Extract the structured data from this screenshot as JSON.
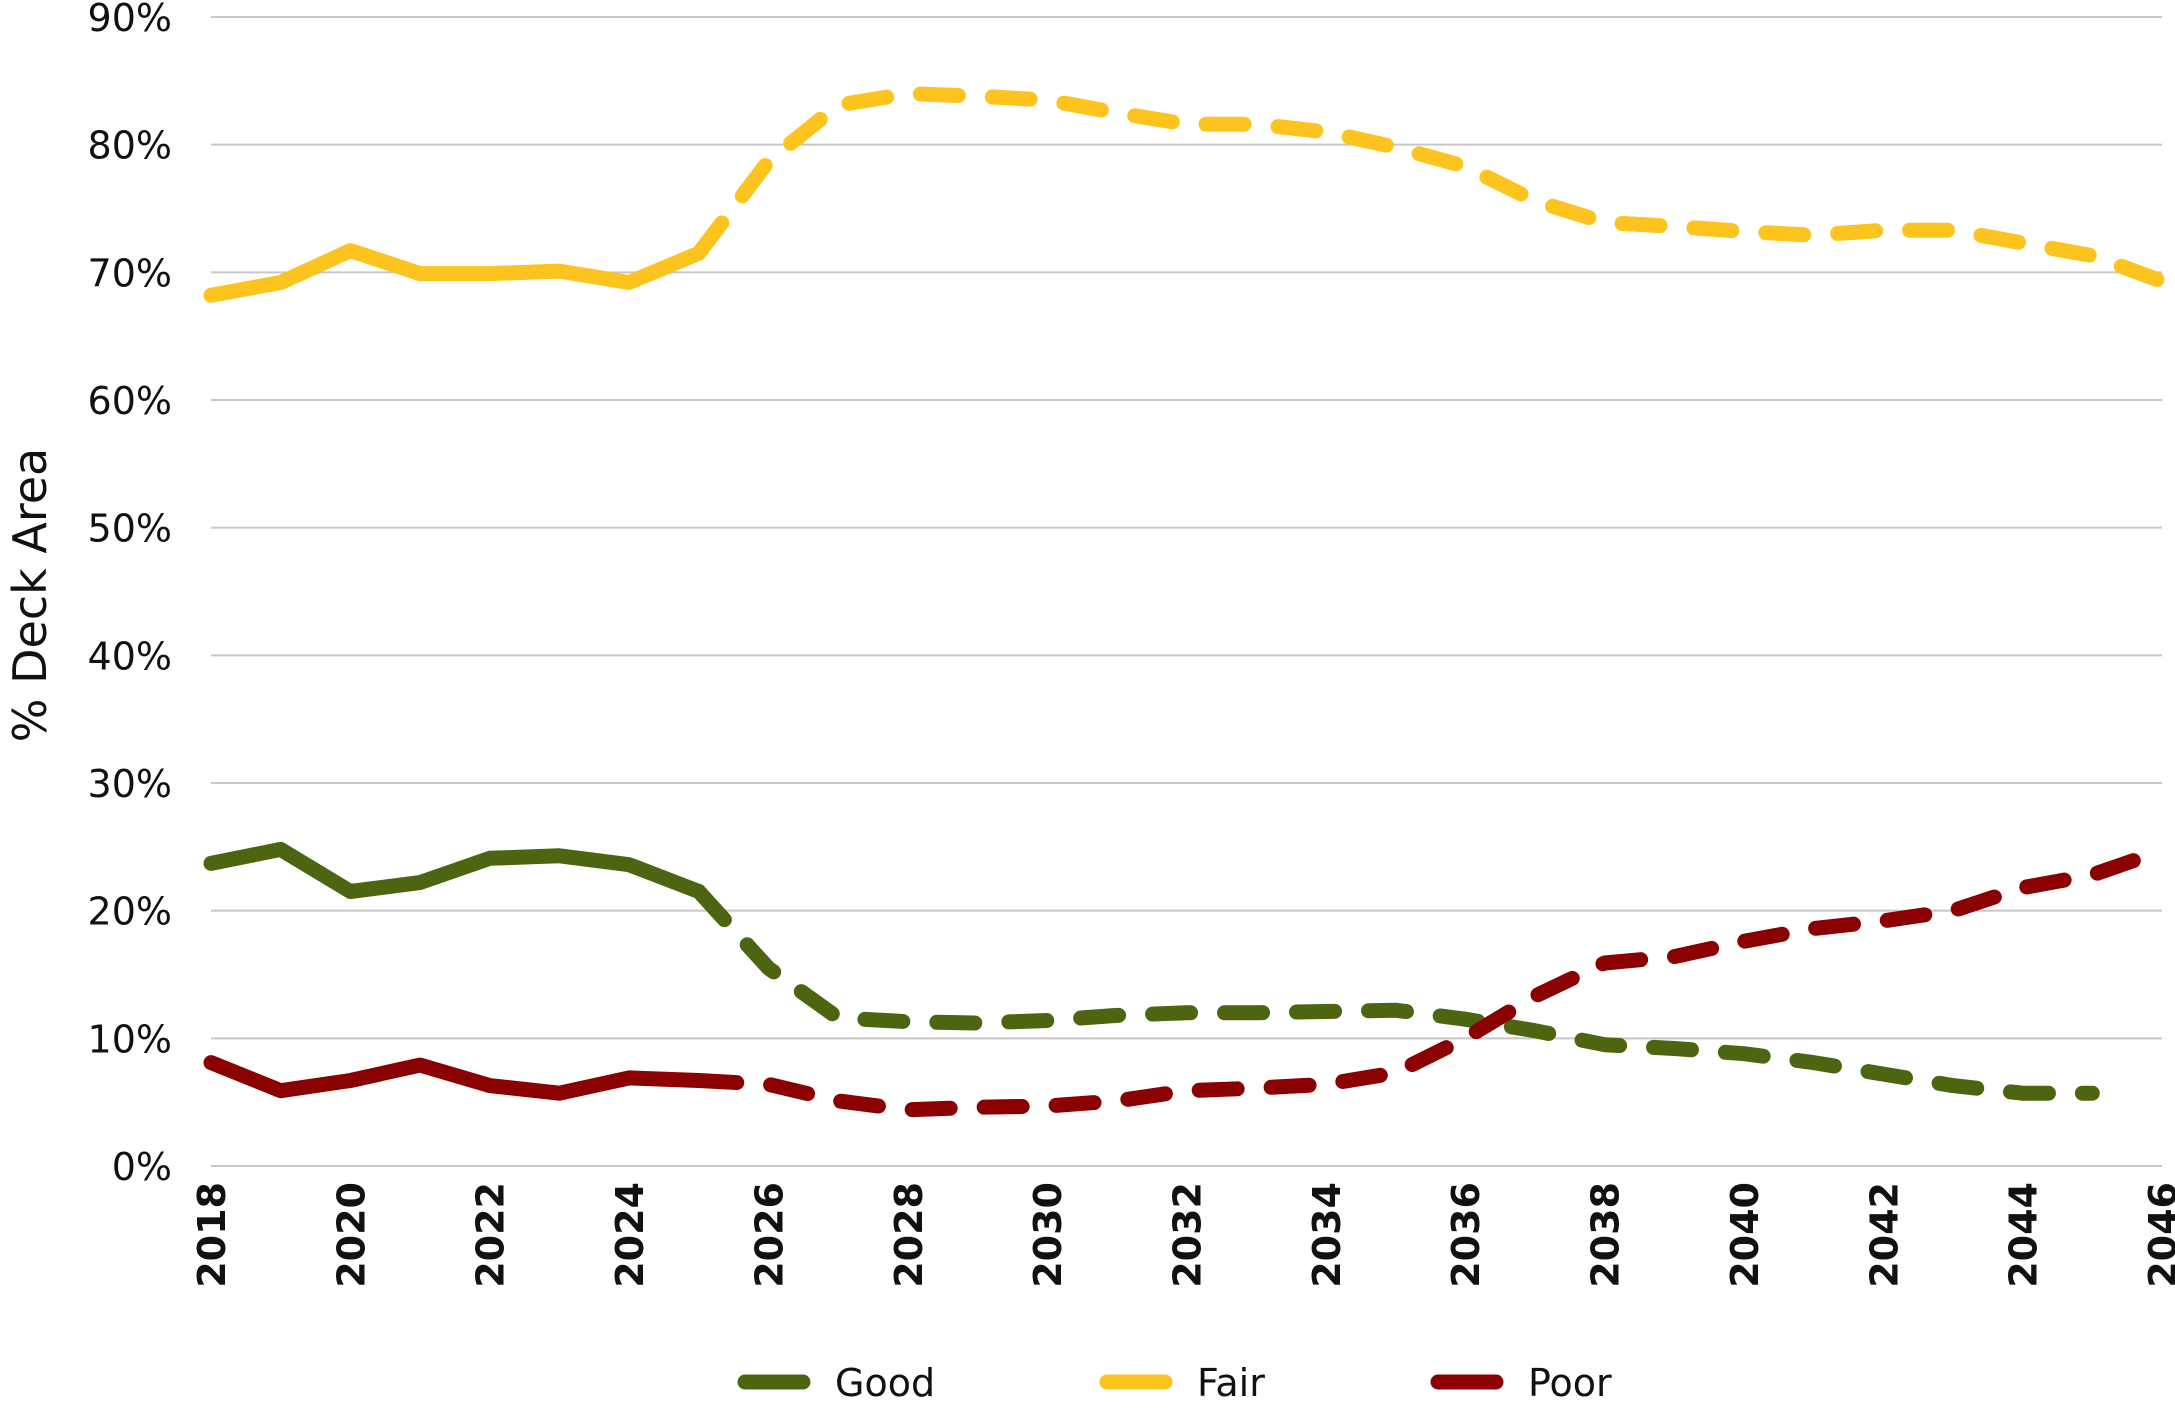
{
  "chart_data": {
    "type": "line",
    "ylabel": "% Deck Area",
    "xlabel": "",
    "title": "",
    "ylim": [
      0,
      90
    ],
    "yticks": [
      0,
      10,
      20,
      30,
      40,
      50,
      60,
      70,
      80,
      90
    ],
    "ytick_labels": [
      "0%",
      "10%",
      "20%",
      "30%",
      "40%",
      "50%",
      "60%",
      "70%",
      "80%",
      "90%"
    ],
    "xlim": [
      2018,
      2046
    ],
    "xticks": [
      2018,
      2020,
      2022,
      2024,
      2026,
      2028,
      2030,
      2032,
      2034,
      2036,
      2038,
      2040,
      2042,
      2044,
      2046
    ],
    "xtick_labels": [
      "2018",
      "2020",
      "2022",
      "2024",
      "2026",
      "2028",
      "2030",
      "2032",
      "2034",
      "2036",
      "2038",
      "2040",
      "2042",
      "2044",
      "2046"
    ],
    "grid": true,
    "legend": "bottom-center",
    "x": [
      2018,
      2019,
      2020,
      2021,
      2022,
      2023,
      2024,
      2025,
      2026,
      2027,
      2028,
      2029,
      2030,
      2031,
      2032,
      2033,
      2034,
      2035,
      2036,
      2037,
      2038,
      2039,
      2040,
      2041,
      2042,
      2043,
      2044,
      2045,
      2046
    ],
    "actual_through": 2025,
    "series": [
      {
        "name": "Good",
        "color": "#4d6410",
        "values": [
          23.7,
          24.8,
          21.5,
          22.2,
          24.1,
          24.3,
          23.6,
          21.5,
          15.5,
          11.6,
          11.3,
          11.2,
          11.4,
          11.8,
          12.0,
          12.0,
          12.1,
          12.2,
          11.5,
          10.6,
          9.5,
          9.2,
          8.8,
          8.1,
          7.2,
          6.3,
          5.7,
          5.7,
          null
        ],
        "solid_through": 2025
      },
      {
        "name": "Fair",
        "color": "#fdc31e",
        "values": [
          68.2,
          69.2,
          71.7,
          69.9,
          69.9,
          70.1,
          69.2,
          71.5,
          78.7,
          83.1,
          84.0,
          83.8,
          83.5,
          82.5,
          81.6,
          81.6,
          81.0,
          79.8,
          78.3,
          75.6,
          73.9,
          73.6,
          73.2,
          72.9,
          73.3,
          73.3,
          72.3,
          71.3,
          69.3
        ],
        "solid_through": 2025
      },
      {
        "name": "Poor",
        "color": "#8b0000",
        "values": [
          8.1,
          5.9,
          6.7,
          7.9,
          6.3,
          5.7,
          6.9,
          6.7,
          6.4,
          5.1,
          4.4,
          4.6,
          4.7,
          5.1,
          5.9,
          6.1,
          6.4,
          7.3,
          10.0,
          13.3,
          15.9,
          16.4,
          17.6,
          18.6,
          19.2,
          20.0,
          21.8,
          22.8,
          24.7
        ],
        "solid_through": 2025
      }
    ]
  }
}
